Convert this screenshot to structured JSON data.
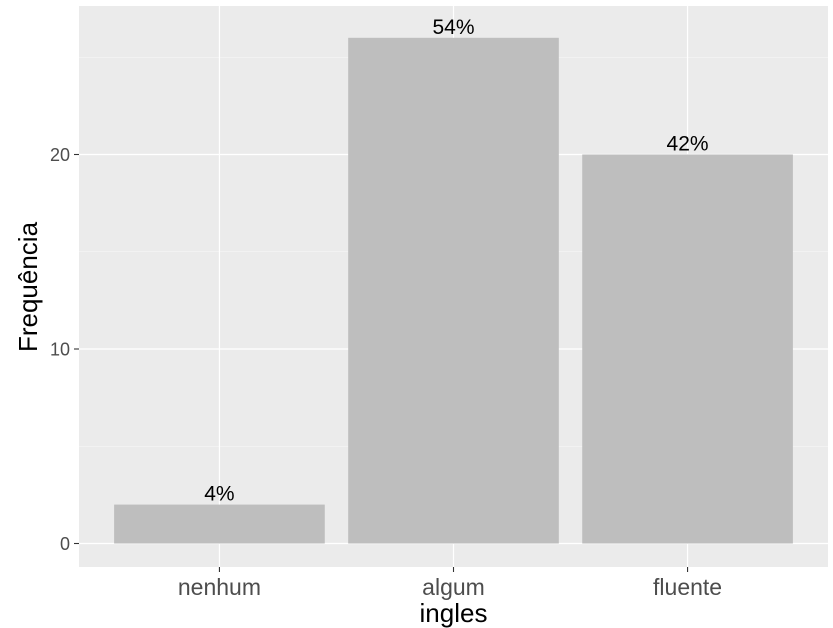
{
  "chart_data": {
    "type": "bar",
    "categories": [
      "nenhum",
      "algum",
      "fluente"
    ],
    "values": [
      2,
      26,
      20
    ],
    "data_labels": [
      "4%",
      "54%",
      "42%"
    ],
    "xlabel": "ingles",
    "ylabel": "Frequência",
    "ylim": [
      0,
      27.3
    ],
    "y_ticks": [
      0,
      10,
      20
    ],
    "y_tick_labels": [
      "0",
      "10",
      "20"
    ],
    "grid": true,
    "legend": "none"
  },
  "colors": {
    "panel_background": "#ebebeb",
    "grid_major": "#ffffff",
    "bar_fill": "#bebebe",
    "tick_text": "#4d4d4d",
    "title_text": "#000000"
  }
}
